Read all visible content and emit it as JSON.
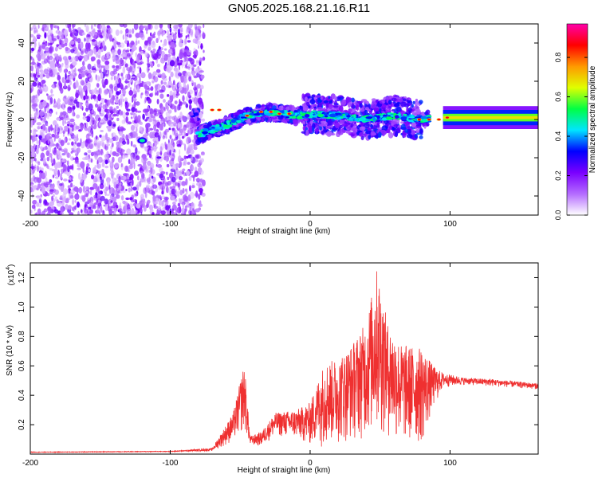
{
  "figure_title": "GN05.2025.168.21.16.R11",
  "chart_data": [
    {
      "type": "heatmap",
      "xlabel": "Height of straight line (km)",
      "ylabel": "Frequency (Hz)",
      "xlim": [
        -200,
        163
      ],
      "ylim": [
        -50,
        50
      ],
      "xticks": [
        -200,
        -100,
        0,
        100
      ],
      "yticks": [
        -40,
        -20,
        0,
        20,
        40
      ],
      "colorbar": {
        "label": "Normalized spectral amplitude",
        "range": [
          0,
          0.97
        ],
        "ticks": [
          0.0,
          0.2,
          0.4,
          0.6,
          0.8
        ],
        "colors": [
          "#ffffff",
          "#b46bff",
          "#7a00ff",
          "#0000ff",
          "#00e5ff",
          "#00ff44",
          "#e0ff00",
          "#ff9900",
          "#ff0000",
          "#ff00aa"
        ]
      },
      "features": {
        "noise_region_x": [
          -200,
          -80
        ],
        "ridge": [
          {
            "x": -80,
            "y": -8
          },
          {
            "x": -60,
            "y": -3
          },
          {
            "x": -45,
            "y": 2
          },
          {
            "x": -30,
            "y": 4
          },
          {
            "x": -10,
            "y": 2
          },
          {
            "x": 0,
            "y": 3
          },
          {
            "x": 20,
            "y": 2
          },
          {
            "x": 40,
            "y": 0
          },
          {
            "x": 60,
            "y": 2
          },
          {
            "x": 80,
            "y": 0
          },
          {
            "x": 100,
            "y": 1
          },
          {
            "x": 163,
            "y": 1
          }
        ],
        "isolated_blob": {
          "x": -120,
          "y": -11
        }
      }
    },
    {
      "type": "line",
      "xlabel": "Height of straight line (km)",
      "ylabel": "SNR (10 * v/v)",
      "y_multiplier": "(x10",
      "y_multiplier_exponent": "4",
      "xlim": [
        -200,
        163
      ],
      "ylim": [
        0.0,
        1.3
      ],
      "xticks": [
        -200,
        -100,
        0,
        100
      ],
      "yticks": [
        0.2,
        0.4,
        0.6,
        0.8,
        1.0,
        1.2
      ],
      "color": "#ef3030",
      "envelope": [
        {
          "x": -200,
          "base": 0.01,
          "peak": 0.015
        },
        {
          "x": -100,
          "base": 0.015,
          "peak": 0.02
        },
        {
          "x": -70,
          "base": 0.02,
          "peak": 0.04
        },
        {
          "x": -55,
          "base": 0.08,
          "peak": 0.28
        },
        {
          "x": -47,
          "base": 0.15,
          "peak": 0.62
        },
        {
          "x": -43,
          "base": 0.06,
          "peak": 0.12
        },
        {
          "x": -35,
          "base": 0.05,
          "peak": 0.15
        },
        {
          "x": -25,
          "base": 0.12,
          "peak": 0.28
        },
        {
          "x": -10,
          "base": 0.1,
          "peak": 0.3
        },
        {
          "x": 0,
          "base": 0.05,
          "peak": 0.35
        },
        {
          "x": 10,
          "base": 0.05,
          "peak": 0.62
        },
        {
          "x": 20,
          "base": 0.06,
          "peak": 0.65
        },
        {
          "x": 30,
          "base": 0.08,
          "peak": 0.75
        },
        {
          "x": 40,
          "base": 0.1,
          "peak": 0.9
        },
        {
          "x": 48,
          "base": 0.1,
          "peak": 1.28
        },
        {
          "x": 55,
          "base": 0.1,
          "peak": 0.9
        },
        {
          "x": 65,
          "base": 0.05,
          "peak": 0.75
        },
        {
          "x": 80,
          "base": 0.05,
          "peak": 0.72
        },
        {
          "x": 88,
          "base": 0.3,
          "peak": 0.6
        },
        {
          "x": 95,
          "base": 0.45,
          "peak": 0.55
        },
        {
          "x": 110,
          "base": 0.47,
          "peak": 0.52
        },
        {
          "x": 130,
          "base": 0.46,
          "peak": 0.51
        },
        {
          "x": 163,
          "base": 0.44,
          "peak": 0.48
        }
      ]
    }
  ]
}
